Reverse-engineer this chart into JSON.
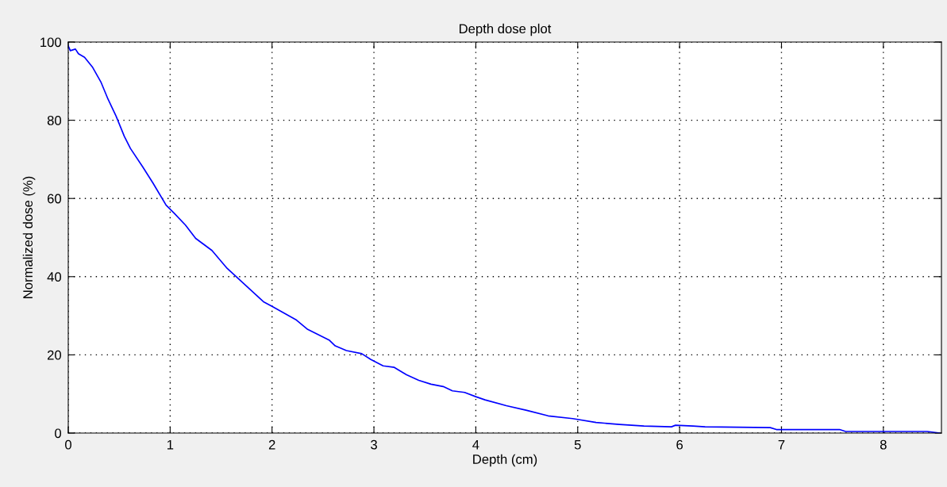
{
  "chart_data": {
    "type": "line",
    "title": "Depth dose plot",
    "xlabel": "Depth (cm)",
    "ylabel": "Normalized dose (%)",
    "x": [
      0,
      0.02,
      0.07,
      0.1,
      0.16,
      0.24,
      0.32,
      0.39,
      0.47,
      0.55,
      0.61,
      0.73,
      0.83,
      0.96,
      1.04,
      1.15,
      1.25,
      1.41,
      1.56,
      1.92,
      2.0,
      2.24,
      2.35,
      2.56,
      2.62,
      2.73,
      2.88,
      2.97,
      3.09,
      3.2,
      3.32,
      3.44,
      3.56,
      3.68,
      3.77,
      3.89,
      4.0,
      4.09,
      4.3,
      4.5,
      4.71,
      4.95,
      5.18,
      5.41,
      5.65,
      5.92,
      5.96,
      6.13,
      6.25,
      6.89,
      6.95,
      7.57,
      7.63,
      8.43,
      8.55
    ],
    "series": [
      {
        "color": "#0000ff",
        "values": [
          99,
          97.8,
          98.2,
          97,
          96.1,
          93.5,
          89.8,
          85.4,
          81,
          75.9,
          72.8,
          68.1,
          64,
          58.3,
          56.2,
          53.2,
          49.8,
          46.7,
          42.1,
          33.5,
          32.4,
          28.9,
          26.5,
          23.8,
          22.3,
          21.1,
          20.3,
          18.8,
          17.2,
          16.8,
          14.9,
          13.5,
          12.5,
          11.9,
          10.8,
          10.4,
          9.3,
          8.5,
          7.0,
          5.8,
          4.4,
          3.7,
          2.7,
          2.2,
          1.8,
          1.6,
          2.0,
          1.8,
          1.6,
          1.4,
          0.9,
          0.9,
          0.4,
          0.4,
          0
        ]
      }
    ],
    "xlim": [
      0,
      8.57
    ],
    "ylim": [
      0,
      100
    ],
    "xticks": [
      0,
      1,
      2,
      3,
      4,
      5,
      6,
      7,
      8
    ],
    "yticks": [
      0,
      20,
      40,
      60,
      80,
      100
    ],
    "grid": true,
    "line_style": "solid",
    "marker": "none"
  }
}
